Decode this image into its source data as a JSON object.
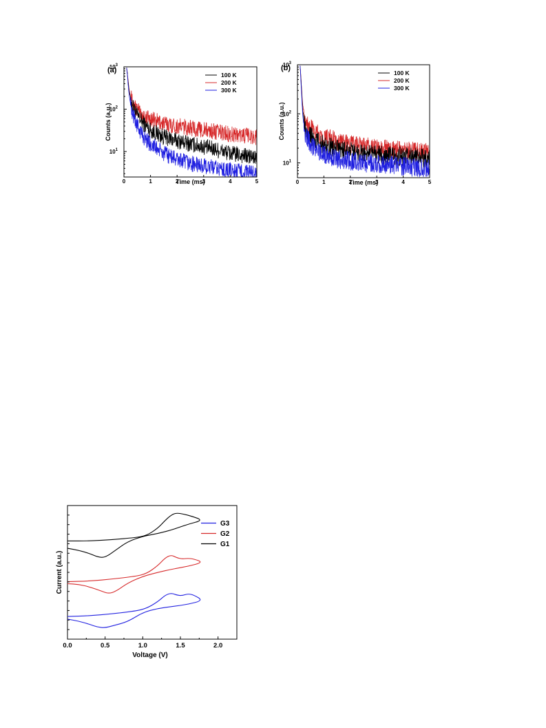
{
  "chart_data": [
    {
      "type": "line",
      "panel_label": "(a)",
      "xlabel": "Time (ms)",
      "ylabel": "Counts (a.u.)",
      "xlim": [
        0,
        5
      ],
      "ylim": [
        2.5,
        1000
      ],
      "y_scale": "log",
      "x_ticks": [
        "0",
        "1",
        "2",
        "3",
        "4",
        "5"
      ],
      "y_tick_values": [
        10,
        100,
        1000
      ],
      "y_ticks": [
        "10",
        "10",
        "10"
      ],
      "y_tick_exponents": [
        "1",
        "2",
        "3"
      ],
      "legend_position": "top-right",
      "series": [
        {
          "name": "100 K",
          "color": "#000000",
          "x": [
            0.1,
            0.2,
            0.3,
            0.5,
            0.75,
            1.0,
            1.5,
            2.0,
            2.5,
            3.0,
            3.5,
            4.0,
            4.5,
            5.0
          ],
          "values": [
            1000,
            250,
            130,
            70,
            45,
            32,
            22,
            18,
            15,
            13,
            11,
            9,
            8,
            7
          ]
        },
        {
          "name": "200 K",
          "color": "#d62728",
          "x": [
            0.1,
            0.2,
            0.3,
            0.5,
            0.75,
            1.0,
            1.5,
            2.0,
            2.5,
            3.0,
            3.5,
            4.0,
            4.5,
            5.0
          ],
          "values": [
            1000,
            280,
            160,
            95,
            70,
            58,
            46,
            40,
            36,
            32,
            29,
            26,
            24,
            22
          ]
        },
        {
          "name": "300 K",
          "color": "#1f1fe0",
          "x": [
            0.1,
            0.2,
            0.3,
            0.5,
            0.75,
            1.0,
            1.5,
            2.0,
            2.5,
            3.0,
            3.5,
            4.0,
            4.5,
            5.0
          ],
          "values": [
            1000,
            200,
            90,
            40,
            22,
            15,
            9,
            6.5,
            5.2,
            4.5,
            4.0,
            3.6,
            3.3,
            3.0
          ]
        }
      ]
    },
    {
      "type": "line",
      "panel_label": "(b)",
      "xlabel": "Time (ms)",
      "ylabel": "Counts (a.u.)",
      "xlim": [
        0,
        5
      ],
      "ylim": [
        5,
        1000
      ],
      "y_scale": "log",
      "x_ticks": [
        "0",
        "1",
        "2",
        "3",
        "4",
        "5"
      ],
      "y_tick_values": [
        10,
        100,
        1000
      ],
      "y_ticks": [
        "10",
        "10",
        "10"
      ],
      "y_tick_exponents": [
        "1",
        "2",
        "3"
      ],
      "legend_position": "top-right",
      "series": [
        {
          "name": "100 K",
          "color": "#000000",
          "x": [
            0.1,
            0.2,
            0.3,
            0.5,
            0.75,
            1.0,
            1.5,
            2.0,
            2.5,
            3.0,
            3.5,
            4.0,
            4.5,
            5.0
          ],
          "values": [
            1000,
            120,
            55,
            35,
            27,
            23,
            19,
            17,
            16,
            15,
            14,
            13.5,
            13,
            12.5
          ]
        },
        {
          "name": "200 K",
          "color": "#d62728",
          "x": [
            0.1,
            0.2,
            0.3,
            0.5,
            0.75,
            1.0,
            1.5,
            2.0,
            2.5,
            3.0,
            3.5,
            4.0,
            4.5,
            5.0
          ],
          "values": [
            1000,
            150,
            75,
            50,
            40,
            34,
            28,
            24,
            22,
            20,
            19,
            18,
            17,
            16
          ]
        },
        {
          "name": "300 K",
          "color": "#1f1fe0",
          "x": [
            0.1,
            0.2,
            0.3,
            0.5,
            0.75,
            1.0,
            1.5,
            2.0,
            2.5,
            3.0,
            3.5,
            4.0,
            4.5,
            5.0
          ],
          "values": [
            1000,
            90,
            40,
            24,
            18,
            15,
            12,
            11,
            10,
            9.5,
            9,
            8.5,
            8,
            7.5
          ]
        }
      ]
    },
    {
      "type": "line",
      "xlabel": "Voltage (V)",
      "ylabel": "Current (a.u.)",
      "xlim": [
        0.0,
        2.25
      ],
      "ylim": [
        0,
        1
      ],
      "x_ticks": [
        "0.0",
        "0.5",
        "1.0",
        "1.5",
        "2.0"
      ],
      "x_tick_values": [
        0.0,
        0.5,
        1.0,
        1.5,
        2.0
      ],
      "y_tick_count": 14,
      "legend_position": "top-right",
      "series": [
        {
          "name": "G3",
          "color": "#1f1fe0",
          "x": [
            0.0,
            0.3,
            0.6,
            0.9,
            1.05,
            1.2,
            1.3,
            1.38,
            1.45,
            1.52,
            1.6,
            1.68,
            1.8,
            1.6,
            1.4,
            1.2,
            1.0,
            0.8,
            0.6,
            0.5,
            0.4,
            0.3,
            0.15,
            0.0
          ],
          "values": [
            0.17,
            0.175,
            0.19,
            0.21,
            0.23,
            0.28,
            0.33,
            0.345,
            0.33,
            0.325,
            0.34,
            0.33,
            0.29,
            0.26,
            0.245,
            0.23,
            0.2,
            0.13,
            0.1,
            0.085,
            0.09,
            0.11,
            0.135,
            0.15
          ]
        },
        {
          "name": "G2",
          "color": "#d62728",
          "x": [
            0.0,
            0.3,
            0.6,
            0.9,
            1.05,
            1.2,
            1.3,
            1.38,
            1.45,
            1.52,
            1.6,
            1.68,
            1.8,
            1.6,
            1.4,
            1.2,
            1.0,
            0.8,
            0.65,
            0.55,
            0.45,
            0.3,
            0.15,
            0.0
          ],
          "values": [
            0.43,
            0.435,
            0.45,
            0.47,
            0.49,
            0.55,
            0.61,
            0.63,
            0.61,
            0.6,
            0.605,
            0.6,
            0.575,
            0.545,
            0.525,
            0.5,
            0.47,
            0.42,
            0.36,
            0.34,
            0.36,
            0.39,
            0.41,
            0.415
          ]
        },
        {
          "name": "G1",
          "color": "#000000",
          "x": [
            0.0,
            0.3,
            0.6,
            0.9,
            1.05,
            1.2,
            1.3,
            1.38,
            1.45,
            1.55,
            1.65,
            1.8,
            1.6,
            1.4,
            1.2,
            1.0,
            0.8,
            0.65,
            0.5,
            0.4,
            0.3,
            0.15,
            0.0
          ],
          "values": [
            0.735,
            0.735,
            0.745,
            0.76,
            0.775,
            0.83,
            0.89,
            0.93,
            0.945,
            0.935,
            0.92,
            0.89,
            0.86,
            0.82,
            0.79,
            0.77,
            0.73,
            0.67,
            0.61,
            0.615,
            0.64,
            0.665,
            0.68
          ]
        }
      ]
    }
  ]
}
